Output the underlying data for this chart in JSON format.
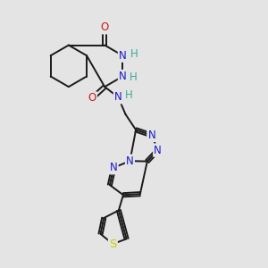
{
  "bg_color": "#e4e4e4",
  "bond_color": "#1a1a1a",
  "bond_width": 1.4,
  "atom_colors": {
    "N": "#1a1acc",
    "O": "#cc1a1a",
    "S": "#cccc00",
    "H": "#3aaa99"
  },
  "font_size": 8.5,
  "figsize": [
    3.0,
    3.0
  ],
  "dpi": 100
}
